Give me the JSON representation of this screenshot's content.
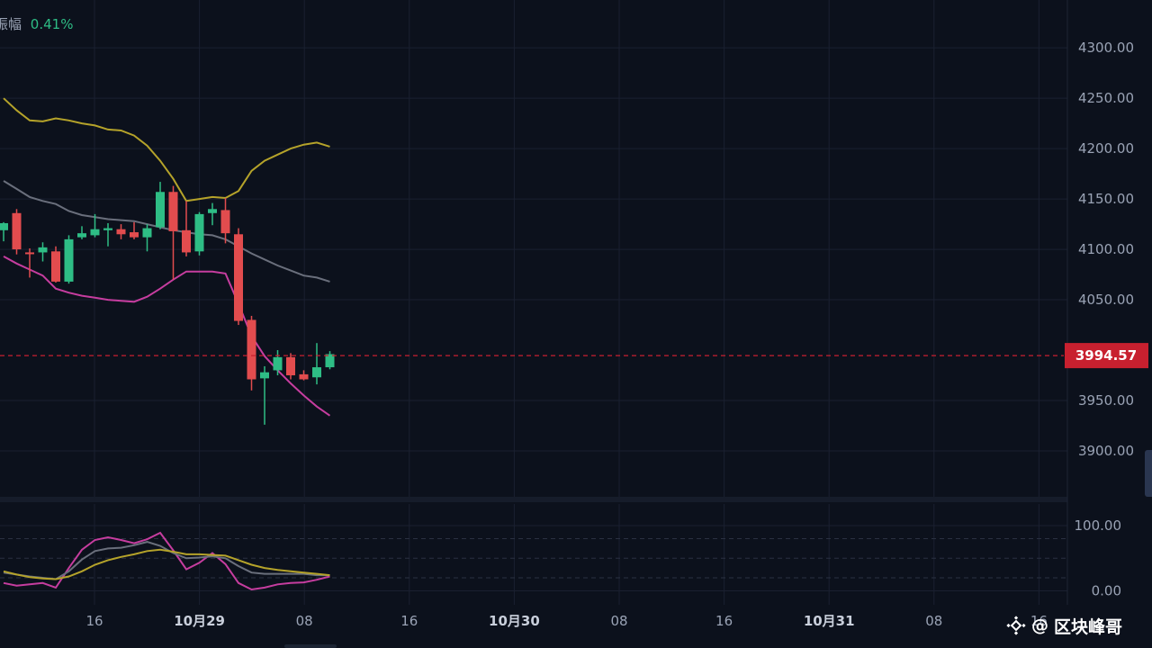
{
  "header": {
    "amplitude_label": "振幅",
    "amplitude_value": "0.41%"
  },
  "current_price": "3994.57",
  "watermark": {
    "at": "@",
    "author": "区块峰哥"
  },
  "colors": {
    "up": "#2ebd85",
    "down": "#e24c4e",
    "price_tag": "#c8202f",
    "boll_upper": "#b5a32a",
    "boll_mid": "#6a6f7c",
    "boll_lower": "#c63d9f",
    "grid": "#1a2030"
  },
  "chart_data": [
    {
      "type": "candlestick",
      "title": "",
      "y_ticks": [
        "4300.00",
        "4250.00",
        "4200.00",
        "4150.00",
        "4100.00",
        "4050.00",
        "3950.00",
        "3900.00"
      ],
      "ylim": [
        3858,
        4335
      ],
      "x_ticks": [
        "16",
        "10月29",
        "08",
        "16",
        "10月30",
        "08",
        "16",
        "10月31",
        "08",
        "16"
      ],
      "major_x_ticks": [
        "10月29",
        "10月30",
        "10月31"
      ],
      "current_price_line": 3994.57,
      "candles": [
        {
          "o": 4119,
          "h": 4127,
          "l": 4108,
          "c": 4126
        },
        {
          "o": 4136,
          "h": 4140,
          "l": 4095,
          "c": 4100
        },
        {
          "o": 4097,
          "h": 4101,
          "l": 4072,
          "c": 4096
        },
        {
          "o": 4097,
          "h": 4107,
          "l": 4088,
          "c": 4102
        },
        {
          "o": 4098,
          "h": 4103,
          "l": 4067,
          "c": 4068
        },
        {
          "o": 4068,
          "h": 4114,
          "l": 4066,
          "c": 4110
        },
        {
          "o": 4112,
          "h": 4123,
          "l": 4110,
          "c": 4116
        },
        {
          "o": 4114,
          "h": 4135,
          "l": 4112,
          "c": 4120
        },
        {
          "o": 4119,
          "h": 4126,
          "l": 4103,
          "c": 4121
        },
        {
          "o": 4120,
          "h": 4125,
          "l": 4110,
          "c": 4115
        },
        {
          "o": 4117,
          "h": 4127,
          "l": 4110,
          "c": 4112
        },
        {
          "o": 4112,
          "h": 4125,
          "l": 4098,
          "c": 4121
        },
        {
          "o": 4122,
          "h": 4167,
          "l": 4120,
          "c": 4157
        },
        {
          "o": 4157,
          "h": 4163,
          "l": 4070,
          "c": 4118
        },
        {
          "o": 4119,
          "h": 4148,
          "l": 4093,
          "c": 4097
        },
        {
          "o": 4098,
          "h": 4137,
          "l": 4094,
          "c": 4135
        },
        {
          "o": 4136,
          "h": 4146,
          "l": 4124,
          "c": 4140
        },
        {
          "o": 4139,
          "h": 4151,
          "l": 4106,
          "c": 4116
        },
        {
          "o": 4115,
          "h": 4121,
          "l": 4025,
          "c": 4029
        },
        {
          "o": 4030,
          "h": 4034,
          "l": 3960,
          "c": 3971
        },
        {
          "o": 3972,
          "h": 3984,
          "l": 3926,
          "c": 3978
        },
        {
          "o": 3980,
          "h": 4000,
          "l": 3975,
          "c": 3993
        },
        {
          "o": 3993,
          "h": 3997,
          "l": 3971,
          "c": 3975
        },
        {
          "o": 3976,
          "h": 3980,
          "l": 3970,
          "c": 3971
        },
        {
          "o": 3973,
          "h": 4007,
          "l": 3966,
          "c": 3983
        },
        {
          "o": 3983,
          "h": 3999,
          "l": 3981,
          "c": 3996
        }
      ],
      "boll_upper": [
        4250,
        4238,
        4228,
        4227,
        4230,
        4228,
        4225,
        4223,
        4219,
        4218,
        4213,
        4203,
        4188,
        4170,
        4148,
        4150,
        4152,
        4151,
        4158,
        4178,
        4188,
        4194,
        4200,
        4204,
        4206,
        4202
      ],
      "boll_mid": [
        4168,
        4160,
        4152,
        4148,
        4145,
        4138,
        4134,
        4132,
        4130,
        4129,
        4128,
        4125,
        4122,
        4119,
        4117,
        4115,
        4114,
        4110,
        4103,
        4096,
        4090,
        4084,
        4079,
        4074,
        4072,
        4068
      ],
      "boll_lower": [
        4093,
        4086,
        4080,
        4074,
        4061,
        4057,
        4054,
        4052,
        4050,
        4049,
        4048,
        4053,
        4061,
        4070,
        4078,
        4078,
        4078,
        4076,
        4046,
        4014,
        3994,
        3980,
        3967,
        3955,
        3944,
        3935
      ]
    },
    {
      "type": "line",
      "title": "",
      "y_ticks": [
        "100.00",
        "0.00"
      ],
      "ylim": [
        -7,
        122
      ],
      "dashed_levels": [
        80,
        50,
        20
      ],
      "series": [
        {
          "color": "#c63d9f",
          "values": [
            12,
            8,
            10,
            12,
            5,
            35,
            63,
            78,
            82,
            78,
            73,
            79,
            89,
            62,
            33,
            43,
            58,
            41,
            12,
            2,
            5,
            10,
            12,
            13,
            17,
            22
          ]
        },
        {
          "color": "#6a6f7c",
          "values": [
            28,
            25,
            22,
            20,
            18,
            30,
            48,
            61,
            65,
            66,
            70,
            75,
            69,
            58,
            50,
            51,
            53,
            50,
            38,
            28,
            26,
            26,
            26,
            26,
            24,
            24
          ]
        },
        {
          "color": "#b5a32a",
          "values": [
            30,
            25,
            21,
            19,
            18,
            22,
            30,
            40,
            47,
            52,
            56,
            61,
            63,
            60,
            56,
            56,
            55,
            54,
            47,
            40,
            35,
            32,
            30,
            28,
            26,
            24
          ]
        }
      ]
    }
  ]
}
